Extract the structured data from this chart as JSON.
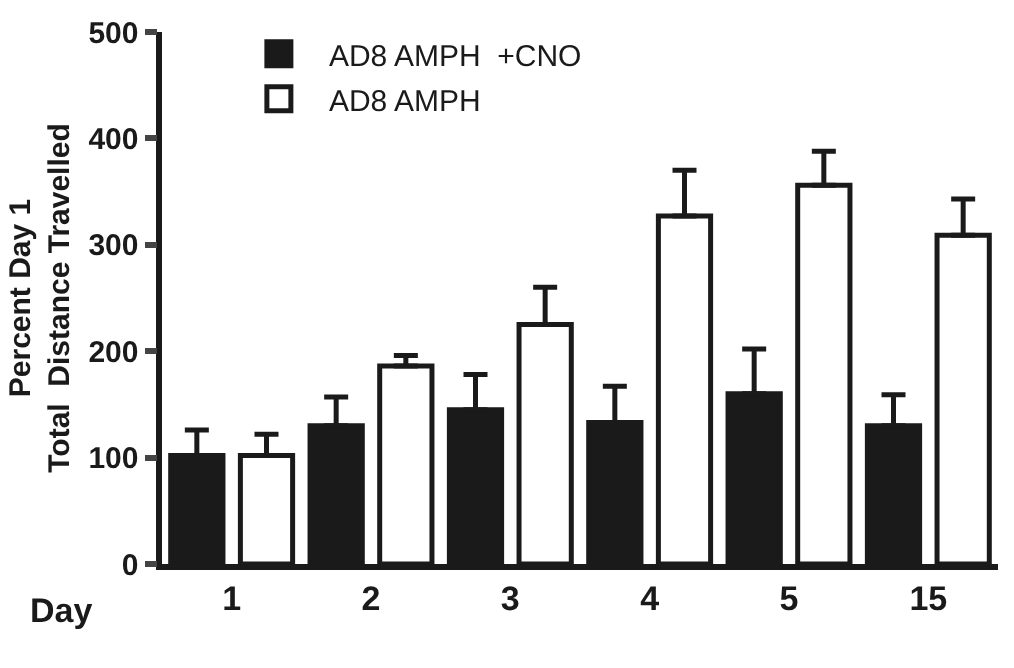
{
  "chart_data": {
    "type": "bar",
    "categories": [
      "1",
      "2",
      "3",
      "4",
      "5",
      "15"
    ],
    "xlabel": "Day",
    "ylabel": "Percent Day 1\nTotal  Distance Travelled",
    "ylim": [
      0,
      500
    ],
    "yticks": [
      0,
      100,
      200,
      300,
      400,
      500
    ],
    "legend": "top left",
    "series": [
      {
        "name": "AD8 AMPH  +CNO",
        "color": "#1a1a1a",
        "values": [
          102,
          130,
          145,
          133,
          160,
          130
        ],
        "errors": [
          24,
          27,
          33,
          34,
          42,
          29
        ]
      },
      {
        "name": "AD8 AMPH",
        "color": "#ffffff",
        "values": [
          102,
          186,
          225,
          327,
          356,
          309
        ],
        "errors": [
          20,
          10,
          35,
          43,
          32,
          34
        ]
      }
    ]
  }
}
